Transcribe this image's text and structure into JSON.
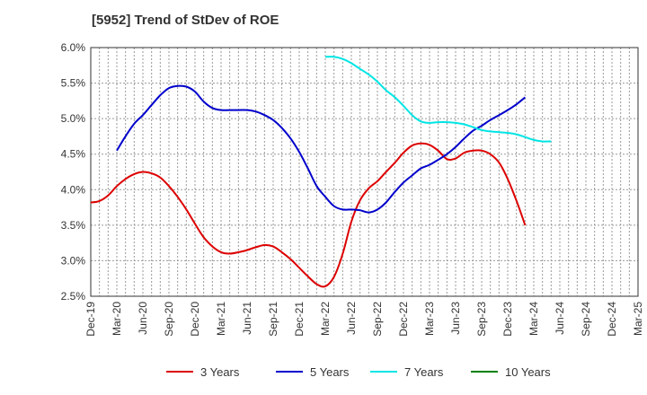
{
  "title": "[5952]  Trend of StDev of ROE",
  "chart_data": {
    "type": "line",
    "title": "[5952]  Trend of StDev of ROE",
    "xlabel": "",
    "ylabel": "",
    "ylim": [
      2.5,
      6.0
    ],
    "yticks": [
      "2.5%",
      "3.0%",
      "3.5%",
      "4.0%",
      "4.5%",
      "5.0%",
      "5.5%",
      "6.0%"
    ],
    "xticks": [
      "Dec-19",
      "Mar-20",
      "Jun-20",
      "Sep-20",
      "Dec-20",
      "Mar-21",
      "Jun-21",
      "Sep-21",
      "Dec-21",
      "Mar-22",
      "Jun-22",
      "Sep-22",
      "Dec-22",
      "Mar-23",
      "Jun-23",
      "Sep-23",
      "Dec-23",
      "Mar-24",
      "Jun-24",
      "Sep-24",
      "Dec-24",
      "Mar-25"
    ],
    "grid": true,
    "legend_position": "bottom",
    "series": [
      {
        "name": "3 Years",
        "color": "#dd0000",
        "points": [
          [
            0,
            3.82
          ],
          [
            0.33,
            3.84
          ],
          [
            0.67,
            3.92
          ],
          [
            1,
            4.05
          ],
          [
            1.33,
            4.15
          ],
          [
            1.67,
            4.22
          ],
          [
            2,
            4.25
          ],
          [
            2.33,
            4.23
          ],
          [
            2.67,
            4.17
          ],
          [
            3,
            4.05
          ],
          [
            3.33,
            3.9
          ],
          [
            3.67,
            3.72
          ],
          [
            4,
            3.52
          ],
          [
            4.33,
            3.33
          ],
          [
            4.67,
            3.2
          ],
          [
            5,
            3.12
          ],
          [
            5.33,
            3.1
          ],
          [
            5.67,
            3.12
          ],
          [
            6,
            3.15
          ],
          [
            6.33,
            3.19
          ],
          [
            6.67,
            3.22
          ],
          [
            7,
            3.2
          ],
          [
            7.33,
            3.12
          ],
          [
            7.67,
            3.02
          ],
          [
            8,
            2.9
          ],
          [
            8.33,
            2.78
          ],
          [
            8.67,
            2.67
          ],
          [
            9,
            2.64
          ],
          [
            9.33,
            2.77
          ],
          [
            9.67,
            3.1
          ],
          [
            10,
            3.55
          ],
          [
            10.33,
            3.85
          ],
          [
            10.67,
            4.02
          ],
          [
            11,
            4.12
          ],
          [
            11.33,
            4.25
          ],
          [
            11.67,
            4.38
          ],
          [
            12,
            4.52
          ],
          [
            12.33,
            4.62
          ],
          [
            12.67,
            4.65
          ],
          [
            13,
            4.63
          ],
          [
            13.33,
            4.55
          ],
          [
            13.67,
            4.43
          ],
          [
            14,
            4.44
          ],
          [
            14.33,
            4.52
          ],
          [
            14.67,
            4.55
          ],
          [
            15,
            4.55
          ],
          [
            15.33,
            4.5
          ],
          [
            15.67,
            4.38
          ],
          [
            16,
            4.15
          ],
          [
            16.33,
            3.85
          ],
          [
            16.67,
            3.5
          ]
        ]
      },
      {
        "name": "5 Years",
        "color": "#0000cc",
        "points": [
          [
            1,
            4.55
          ],
          [
            1.33,
            4.75
          ],
          [
            1.67,
            4.93
          ],
          [
            2,
            5.05
          ],
          [
            2.33,
            5.19
          ],
          [
            2.67,
            5.33
          ],
          [
            3,
            5.43
          ],
          [
            3.33,
            5.46
          ],
          [
            3.67,
            5.45
          ],
          [
            4,
            5.38
          ],
          [
            4.33,
            5.24
          ],
          [
            4.67,
            5.15
          ],
          [
            5,
            5.12
          ],
          [
            5.33,
            5.12
          ],
          [
            5.67,
            5.12
          ],
          [
            6,
            5.12
          ],
          [
            6.33,
            5.1
          ],
          [
            6.67,
            5.05
          ],
          [
            7,
            4.98
          ],
          [
            7.33,
            4.87
          ],
          [
            7.67,
            4.72
          ],
          [
            8,
            4.53
          ],
          [
            8.33,
            4.3
          ],
          [
            8.67,
            4.05
          ],
          [
            9,
            3.9
          ],
          [
            9.33,
            3.77
          ],
          [
            9.67,
            3.72
          ],
          [
            10,
            3.72
          ],
          [
            10.33,
            3.71
          ],
          [
            10.67,
            3.68
          ],
          [
            11,
            3.72
          ],
          [
            11.33,
            3.82
          ],
          [
            11.67,
            3.97
          ],
          [
            12,
            4.1
          ],
          [
            12.33,
            4.2
          ],
          [
            12.67,
            4.3
          ],
          [
            13,
            4.35
          ],
          [
            13.33,
            4.42
          ],
          [
            13.67,
            4.5
          ],
          [
            14,
            4.6
          ],
          [
            14.33,
            4.72
          ],
          [
            14.67,
            4.83
          ],
          [
            15,
            4.9
          ],
          [
            15.33,
            4.98
          ],
          [
            15.67,
            5.05
          ],
          [
            16,
            5.12
          ],
          [
            16.33,
            5.2
          ],
          [
            16.67,
            5.3
          ]
        ]
      },
      {
        "name": "7 Years",
        "color": "#00e5e5",
        "points": [
          [
            9,
            5.87
          ],
          [
            9.33,
            5.87
          ],
          [
            9.67,
            5.84
          ],
          [
            10,
            5.78
          ],
          [
            10.33,
            5.7
          ],
          [
            10.67,
            5.62
          ],
          [
            11,
            5.52
          ],
          [
            11.33,
            5.4
          ],
          [
            11.67,
            5.3
          ],
          [
            12,
            5.18
          ],
          [
            12.33,
            5.05
          ],
          [
            12.67,
            4.96
          ],
          [
            13,
            4.94
          ],
          [
            13.33,
            4.95
          ],
          [
            13.67,
            4.95
          ],
          [
            14,
            4.94
          ],
          [
            14.33,
            4.92
          ],
          [
            14.67,
            4.88
          ],
          [
            15,
            4.84
          ],
          [
            15.33,
            4.82
          ],
          [
            15.67,
            4.81
          ],
          [
            16,
            4.8
          ],
          [
            16.33,
            4.78
          ],
          [
            16.67,
            4.74
          ],
          [
            17,
            4.7
          ],
          [
            17.33,
            4.68
          ],
          [
            17.67,
            4.68
          ]
        ]
      },
      {
        "name": "10 Years",
        "color": "#008000",
        "points": []
      }
    ]
  }
}
